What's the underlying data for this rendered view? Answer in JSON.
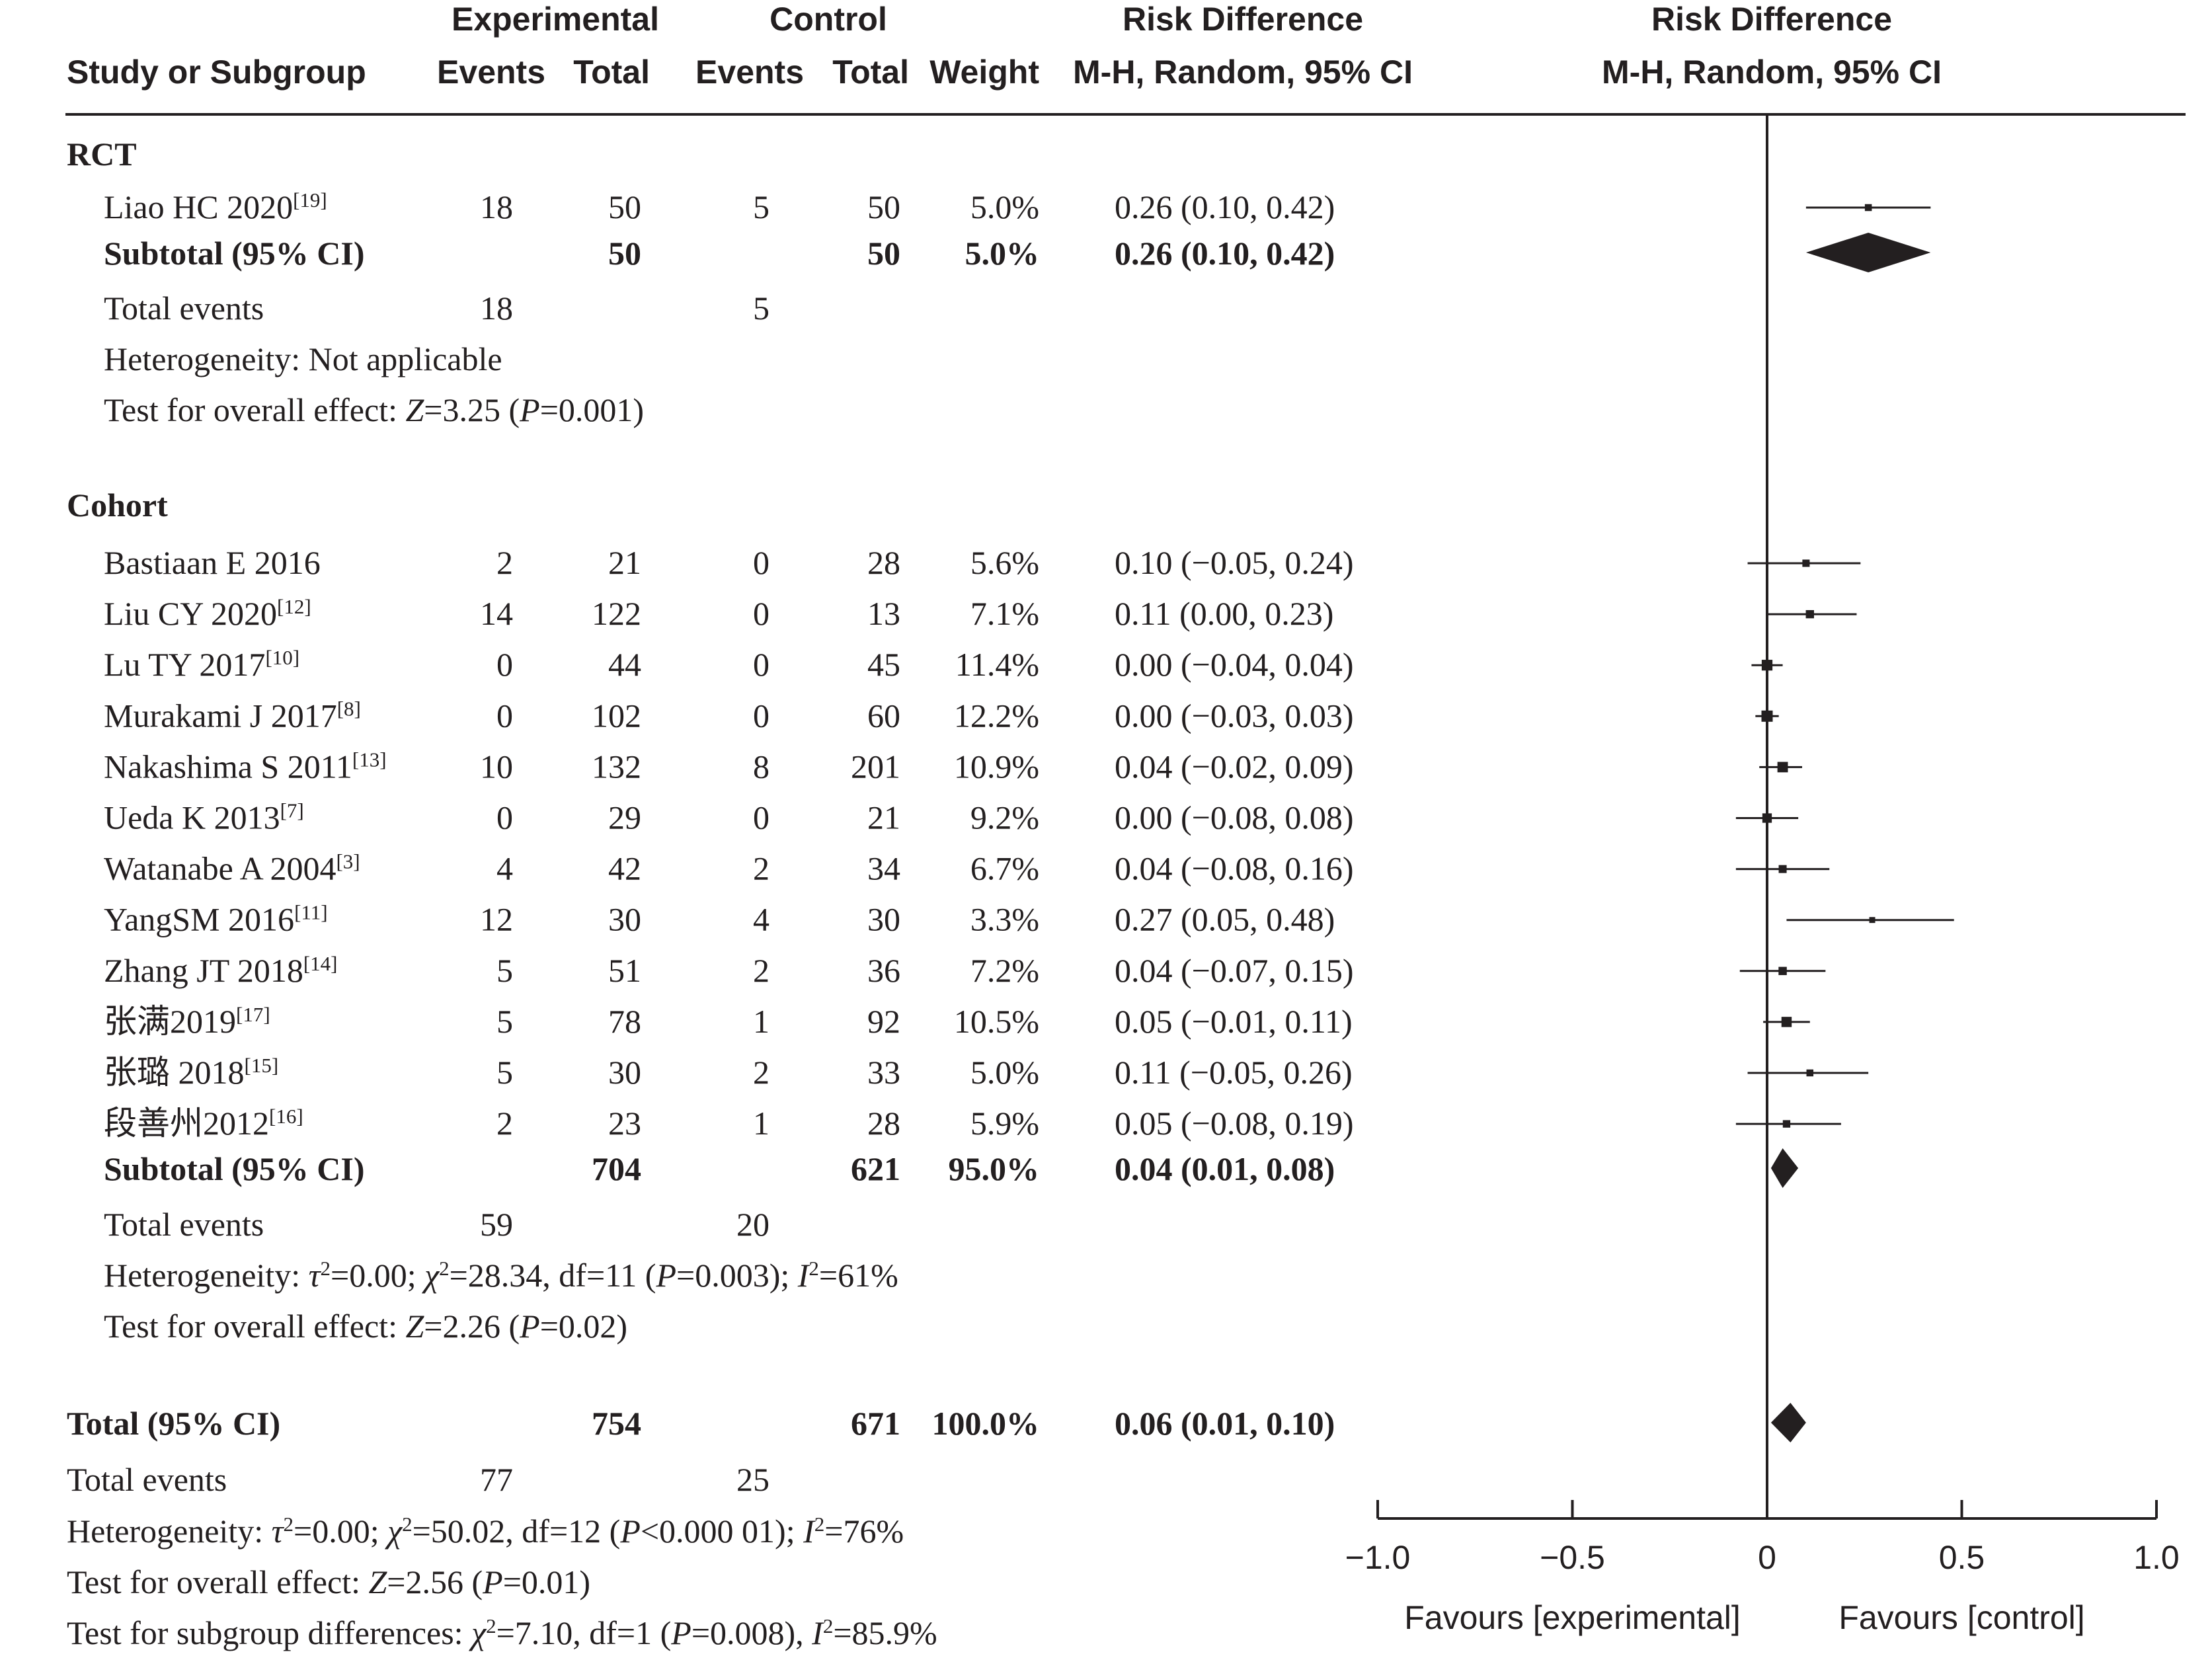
{
  "header": {
    "group_experimental": "Experimental",
    "group_control": "Control",
    "col_study": "Study or Subgroup",
    "col_exp_events": "Events",
    "col_exp_total": "Total",
    "col_ctl_events": "Events",
    "col_ctl_total": "Total",
    "col_weight": "Weight",
    "col_rd_title": "Risk Difference",
    "col_rd_method": "M-H, Random, 95% CI",
    "plot_rd_title": "Risk Difference",
    "plot_rd_method": "M-H, Random, 95% CI"
  },
  "chart_data": {
    "type": "forest",
    "xlim": [
      -1.0,
      1.0
    ],
    "null_line": 0,
    "ticks": [
      "−1.0",
      "−0.5",
      "0",
      "0.5",
      "1.0"
    ],
    "tick_values": [
      -1.0,
      -0.5,
      0,
      0.5,
      1.0
    ],
    "xlabel_left": "Favours [experimental]",
    "xlabel_right": "Favours [control]",
    "subgroups": [
      {
        "name": "RCT",
        "studies": [
          {
            "name": "Liao HC 2020",
            "ref": "[19]",
            "e_events": "18",
            "e_total": "50",
            "c_events": "5",
            "c_total": "50",
            "weight": "5.0%",
            "ci_text": "0.26 (0.10, 0.42)",
            "est": 0.26,
            "lo": 0.1,
            "hi": 0.42,
            "w": 5.0
          }
        ],
        "subtotal": {
          "label": "Subtotal (95% CI)",
          "e_total": "50",
          "c_total": "50",
          "weight": "5.0%",
          "ci_text": "0.26 (0.10, 0.42)",
          "est": 0.26,
          "lo": 0.1,
          "hi": 0.42
        },
        "total_events": {
          "label": "Total events",
          "e": "18",
          "c": "5"
        },
        "heterogeneity": "Not applicable",
        "overall_effect": {
          "z": "3.25",
          "p": "0.001"
        }
      },
      {
        "name": "Cohort",
        "studies": [
          {
            "name": "Bastiaan E 2016",
            "ref": "",
            "e_events": "2",
            "e_total": "21",
            "c_events": "0",
            "c_total": "28",
            "weight": "5.6%",
            "ci_text": "0.10 (−0.05, 0.24)",
            "est": 0.1,
            "lo": -0.05,
            "hi": 0.24,
            "w": 5.6
          },
          {
            "name": "Liu CY 2020",
            "ref": "[12]",
            "e_events": "14",
            "e_total": "122",
            "c_events": "0",
            "c_total": "13",
            "weight": "7.1%",
            "ci_text": "0.11 (0.00, 0.23)",
            "est": 0.11,
            "lo": 0.0,
            "hi": 0.23,
            "w": 7.1
          },
          {
            "name": "Lu TY 2017",
            "ref": "[10]",
            "e_events": "0",
            "e_total": "44",
            "c_events": "0",
            "c_total": "45",
            "weight": "11.4%",
            "ci_text": "0.00 (−0.04, 0.04)",
            "est": 0.0,
            "lo": -0.04,
            "hi": 0.04,
            "w": 11.4
          },
          {
            "name": "Murakami J 2017",
            "ref": "[8]",
            "e_events": "0",
            "e_total": "102",
            "c_events": "0",
            "c_total": "60",
            "weight": "12.2%",
            "ci_text": "0.00 (−0.03, 0.03)",
            "est": 0.0,
            "lo": -0.03,
            "hi": 0.03,
            "w": 12.2
          },
          {
            "name": "Nakashima S 2011",
            "ref": "[13]",
            "e_events": "10",
            "e_total": "132",
            "c_events": "8",
            "c_total": "201",
            "weight": "10.9%",
            "ci_text": "0.04 (−0.02, 0.09)",
            "est": 0.04,
            "lo": -0.02,
            "hi": 0.09,
            "w": 10.9
          },
          {
            "name": "Ueda K 2013",
            "ref": "[7]",
            "e_events": "0",
            "e_total": "29",
            "c_events": "0",
            "c_total": "21",
            "weight": "9.2%",
            "ci_text": "0.00 (−0.08, 0.08)",
            "est": 0.0,
            "lo": -0.08,
            "hi": 0.08,
            "w": 9.2
          },
          {
            "name": "Watanabe A 2004",
            "ref": "[3]",
            "e_events": "4",
            "e_total": "42",
            "c_events": "2",
            "c_total": "34",
            "weight": "6.7%",
            "ci_text": "0.04 (−0.08, 0.16)",
            "est": 0.04,
            "lo": -0.08,
            "hi": 0.16,
            "w": 6.7
          },
          {
            "name": "YangSM 2016",
            "ref": "[11]",
            "e_events": "12",
            "e_total": "30",
            "c_events": "4",
            "c_total": "30",
            "weight": "3.3%",
            "ci_text": "0.27 (0.05, 0.48)",
            "est": 0.27,
            "lo": 0.05,
            "hi": 0.48,
            "w": 3.3
          },
          {
            "name": "Zhang JT 2018",
            "ref": "[14]",
            "e_events": "5",
            "e_total": "51",
            "c_events": "2",
            "c_total": "36",
            "weight": "7.2%",
            "ci_text": "0.04 (−0.07, 0.15)",
            "est": 0.04,
            "lo": -0.07,
            "hi": 0.15,
            "w": 7.2
          },
          {
            "name": "张满2019",
            "ref": "[17]",
            "e_events": "5",
            "e_total": "78",
            "c_events": "1",
            "c_total": "92",
            "weight": "10.5%",
            "ci_text": "0.05 (−0.01, 0.11)",
            "est": 0.05,
            "lo": -0.01,
            "hi": 0.11,
            "w": 10.5
          },
          {
            "name": "张璐 2018",
            "ref": "[15]",
            "e_events": "5",
            "e_total": "30",
            "c_events": "2",
            "c_total": "33",
            "weight": "5.0%",
            "ci_text": "0.11 (−0.05, 0.26)",
            "est": 0.11,
            "lo": -0.05,
            "hi": 0.26,
            "w": 5.0
          },
          {
            "name": "段善州2012",
            "ref": "[16]",
            "e_events": "2",
            "e_total": "23",
            "c_events": "1",
            "c_total": "28",
            "weight": "5.9%",
            "ci_text": "0.05 (−0.08, 0.19)",
            "est": 0.05,
            "lo": -0.08,
            "hi": 0.19,
            "w": 5.9
          }
        ],
        "subtotal": {
          "label": "Subtotal (95% CI)",
          "e_total": "704",
          "c_total": "621",
          "weight": "95.0%",
          "ci_text": "0.04 (0.01, 0.08)",
          "est": 0.04,
          "lo": 0.01,
          "hi": 0.08
        },
        "total_events": {
          "label": "Total events",
          "e": "59",
          "c": "20"
        },
        "heterogeneity": "τ²=0.00; χ²=28.34, df=11 (P=0.003); I²=61%",
        "overall_effect": {
          "z": "2.26",
          "p": "0.02"
        }
      }
    ],
    "total": {
      "label": "Total (95% CI)",
      "e_total": "754",
      "c_total": "671",
      "weight": "100.0%",
      "ci_text": "0.06 (0.01, 0.10)",
      "est": 0.06,
      "lo": 0.01,
      "hi": 0.1
    },
    "total_events": {
      "label": "Total events",
      "e": "77",
      "c": "25"
    },
    "total_heterogeneity": "τ²=0.00; χ²=50.02, df=12 (P<0.000 01); I²=76%",
    "total_overall_effect": {
      "z": "2.56",
      "p": "0.01"
    },
    "subgroup_differences": "χ²=7.10, df=1 (P=0.008), I²=85.9%"
  },
  "labels": {
    "heterogeneity_prefix": "Heterogeneity: ",
    "overall_prefix": "Test for overall effect: ",
    "subgroup_prefix": "Test for subgroup differences: "
  }
}
